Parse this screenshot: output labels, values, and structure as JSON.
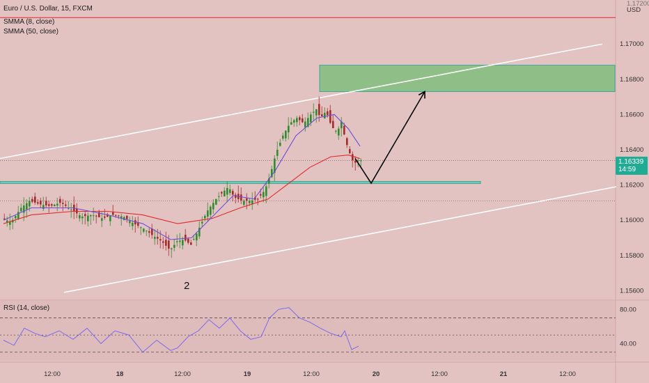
{
  "header": {
    "symbol_title": "Euro / U.S. Dollar, 15, FXCM",
    "indicator_1": "SMMA (8, close)",
    "indicator_2": "SMMA (50, close)",
    "rsi_label": "RSI (14, close)"
  },
  "price_axis": {
    "currency": "USD",
    "top_partial_label": "1.17200",
    "ticks": [
      "1.17000",
      "1.16800",
      "1.16600",
      "1.16400",
      "1.16200",
      "1.16000",
      "1.15800",
      "1.15600"
    ],
    "current_price": "1.16339",
    "countdown": "14:59"
  },
  "rsi_axis": {
    "ticks": [
      "80.00",
      "40.00"
    ]
  },
  "time_axis": {
    "ticks": [
      "12:00",
      "18",
      "12:00",
      "19",
      "12:00",
      "20",
      "12:00",
      "21",
      "12:00"
    ]
  },
  "annotation": {
    "wave_label": "2"
  },
  "colors": {
    "background": "#e3c2c2",
    "zone_fill": "#8fbf86",
    "zone_border": "#3aa7a0",
    "support_fill": "#7fc4a8",
    "up_candle": "#2e8b2e",
    "down_candle": "#a52a2a",
    "smma_fast": "#6a4fd6",
    "smma_slow": "#e02a2a",
    "rsi_line": "#7b68ee",
    "channel": "#ffffff",
    "price_tag": "#22ab94"
  },
  "chart_data": [
    {
      "type": "candlestick",
      "symbol": "EUR/USD",
      "timeframe": "15",
      "ylim": [
        1.1555,
        1.1725
      ],
      "y_ticks": [
        1.17,
        1.168,
        1.166,
        1.164,
        1.162,
        1.16,
        1.158,
        1.156
      ],
      "current_price": 1.16339,
      "close_path": [
        [
          0,
          1.1601
        ],
        [
          14,
          1.1599
        ],
        [
          28,
          1.1607
        ],
        [
          40,
          1.1611
        ],
        [
          55,
          1.1609
        ],
        [
          70,
          1.1608
        ],
        [
          85,
          1.161
        ],
        [
          100,
          1.1606
        ],
        [
          115,
          1.1602
        ],
        [
          130,
          1.1603
        ],
        [
          145,
          1.1601
        ],
        [
          160,
          1.1603
        ],
        [
          175,
          1.1602
        ],
        [
          190,
          1.1598
        ],
        [
          205,
          1.1595
        ],
        [
          218,
          1.1591
        ],
        [
          230,
          1.1588
        ],
        [
          242,
          1.1583
        ],
        [
          252,
          1.1588
        ],
        [
          262,
          1.1589
        ],
        [
          272,
          1.1586
        ],
        [
          282,
          1.1594
        ],
        [
          295,
          1.1605
        ],
        [
          308,
          1.1612
        ],
        [
          318,
          1.1616
        ],
        [
          326,
          1.1619
        ],
        [
          334,
          1.1613
        ],
        [
          345,
          1.1611
        ],
        [
          358,
          1.1611
        ],
        [
          368,
          1.1612
        ],
        [
          378,
          1.1617
        ],
        [
          386,
          1.1626
        ],
        [
          394,
          1.1638
        ],
        [
          404,
          1.1648
        ],
        [
          414,
          1.1655
        ],
        [
          424,
          1.1658
        ],
        [
          434,
          1.1655
        ],
        [
          444,
          1.166
        ],
        [
          452,
          1.1663
        ],
        [
          458,
          1.1658
        ],
        [
          466,
          1.1662
        ],
        [
          474,
          1.1653
        ],
        [
          482,
          1.165
        ],
        [
          488,
          1.1656
        ],
        [
          494,
          1.1645
        ],
        [
          500,
          1.1638
        ],
        [
          506,
          1.1632
        ],
        [
          512,
          1.16339
        ]
      ],
      "smma_fast": [
        [
          0,
          1.16
        ],
        [
          40,
          1.1607
        ],
        [
          100,
          1.1607
        ],
        [
          150,
          1.1603
        ],
        [
          200,
          1.1598
        ],
        [
          240,
          1.1589
        ],
        [
          270,
          1.159
        ],
        [
          300,
          1.1602
        ],
        [
          330,
          1.1614
        ],
        [
          360,
          1.1612
        ],
        [
          390,
          1.1628
        ],
        [
          420,
          1.1648
        ],
        [
          450,
          1.1658
        ],
        [
          475,
          1.166
        ],
        [
          495,
          1.1652
        ],
        [
          512,
          1.1642
        ]
      ],
      "smma_slow": [
        [
          0,
          1.1598
        ],
        [
          40,
          1.1603
        ],
        [
          100,
          1.1605
        ],
        [
          150,
          1.1605
        ],
        [
          200,
          1.1603
        ],
        [
          250,
          1.1598
        ],
        [
          300,
          1.1601
        ],
        [
          340,
          1.1607
        ],
        [
          380,
          1.1612
        ],
        [
          410,
          1.1621
        ],
        [
          440,
          1.163
        ],
        [
          470,
          1.1636
        ],
        [
          495,
          1.1637
        ],
        [
          512,
          1.1635
        ]
      ],
      "supply_zone": [
        1.1673,
        1.1688
      ],
      "support_zone": [
        1.16208,
        1.1622
      ],
      "resistance_line": 1.1715,
      "dotted_levels": [
        1.16339,
        1.1611
      ],
      "channel_upper": [
        [
          0,
          1.1635
        ],
        [
          865,
          1.17
        ]
      ],
      "channel_lower": [
        [
          92,
          1.1559
        ],
        [
          885,
          1.1619
        ]
      ],
      "projection": [
        [
          505,
          1.1635
        ],
        [
          528,
          1.1621
        ],
        [
          605,
          1.1673
        ]
      ],
      "wave_label": "2"
    },
    {
      "type": "line",
      "name": "RSI (14, close)",
      "ylim": [
        20,
        90
      ],
      "levels": [
        70,
        50,
        30
      ],
      "y_ticks": [
        80,
        40
      ],
      "values": [
        [
          0,
          44
        ],
        [
          15,
          38
        ],
        [
          30,
          58
        ],
        [
          45,
          52
        ],
        [
          60,
          48
        ],
        [
          80,
          55
        ],
        [
          100,
          45
        ],
        [
          120,
          58
        ],
        [
          140,
          40
        ],
        [
          160,
          55
        ],
        [
          180,
          50
        ],
        [
          200,
          30
        ],
        [
          220,
          44
        ],
        [
          240,
          32
        ],
        [
          250,
          35
        ],
        [
          265,
          48
        ],
        [
          280,
          55
        ],
        [
          295,
          68
        ],
        [
          310,
          58
        ],
        [
          325,
          70
        ],
        [
          340,
          55
        ],
        [
          355,
          45
        ],
        [
          370,
          48
        ],
        [
          382,
          70
        ],
        [
          395,
          80
        ],
        [
          410,
          82
        ],
        [
          425,
          70
        ],
        [
          440,
          65
        ],
        [
          455,
          58
        ],
        [
          470,
          52
        ],
        [
          485,
          48
        ],
        [
          490,
          55
        ],
        [
          500,
          33
        ],
        [
          510,
          37
        ]
      ]
    }
  ]
}
